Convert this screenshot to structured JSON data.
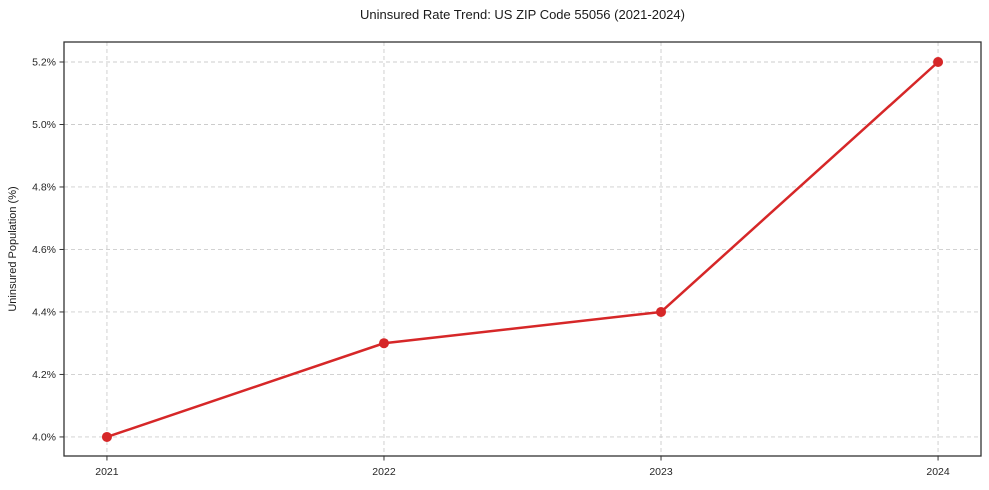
{
  "chart_data": {
    "type": "line",
    "title": "Uninsured Rate Trend: US ZIP Code 55056 (2021-2024)",
    "xlabel": "",
    "ylabel": "Uninsured Population (%)",
    "x": [
      2021,
      2022,
      2023,
      2024
    ],
    "values": [
      4.0,
      4.3,
      4.4,
      5.2
    ],
    "xtick_labels": [
      "2021",
      "2022",
      "2023",
      "2024"
    ],
    "ytick_values": [
      4.0,
      4.2,
      4.4,
      4.6,
      4.8,
      5.0,
      5.2
    ],
    "ytick_labels": [
      "4.0%",
      "4.2%",
      "4.4%",
      "4.6%",
      "4.8%",
      "5.0%",
      "5.2%"
    ],
    "xlim": [
      2020.845,
      2024.155
    ],
    "ylim": [
      3.939,
      5.264
    ],
    "grid": true,
    "legend": "none",
    "line_color": "#d62728",
    "marker": "circle",
    "marker_radius": 5,
    "line_width": 2.5,
    "grid_color": "#cccccc",
    "axis_color": "#333333",
    "text_color": "#262626",
    "background": "#ffffff"
  }
}
